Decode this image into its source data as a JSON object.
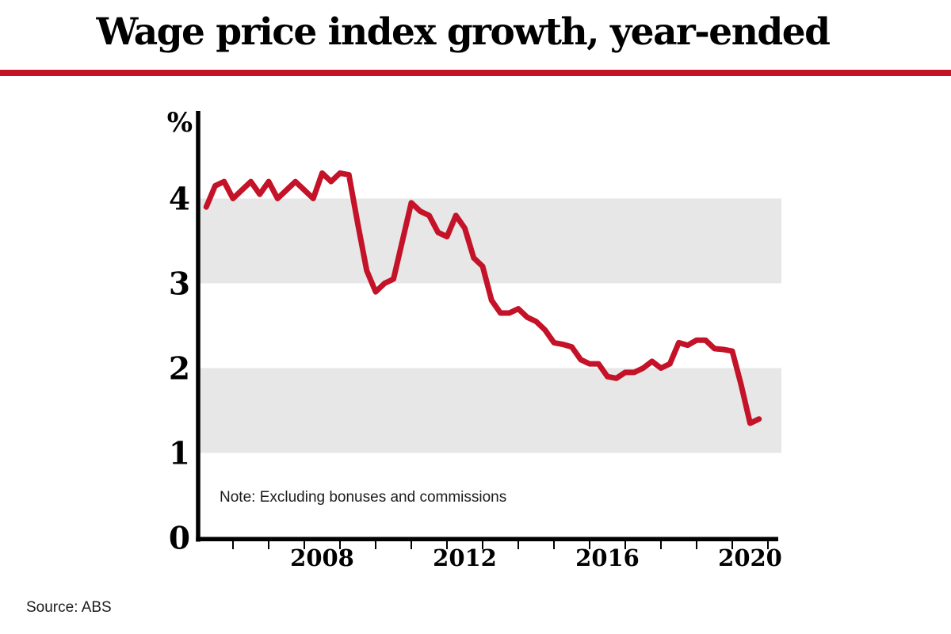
{
  "header": {
    "title": "Wage price index growth, year-ended"
  },
  "colors": {
    "accent_red": "#c41228",
    "band_gray": "#e7e7e7",
    "axis_black": "#000000"
  },
  "source": {
    "text": "Source: ABS"
  },
  "chart_data": {
    "type": "line",
    "title": "Wage price index growth, year-ended",
    "unit_label": "%",
    "series_name": "Wage price index growth, year-ended",
    "note": "Note: Excluding bonuses and commissions",
    "frequency": "quarterly",
    "start_period": "2005Q1",
    "end_period": "2020Q3",
    "xlabel": "",
    "ylabel": "%",
    "ylim": [
      0,
      5
    ],
    "x_range_years": [
      2005,
      2021.4
    ],
    "y_ticks": [
      0,
      1,
      2,
      3,
      4
    ],
    "x_tick_years": [
      2008,
      2012,
      2016,
      2020
    ],
    "x_minor_tick_years": [
      2006,
      2007,
      2008,
      2009,
      2010,
      2011,
      2012,
      2013,
      2014,
      2015,
      2016,
      2017,
      2018,
      2019,
      2020,
      2021
    ],
    "shaded_bands": [
      [
        1,
        2
      ],
      [
        3,
        4
      ]
    ],
    "grid": false,
    "legend": "none",
    "line_color": "#c41228",
    "band_color": "#e7e7e7",
    "periods": [
      "2005Q1",
      "2005Q2",
      "2005Q3",
      "2005Q4",
      "2006Q1",
      "2006Q2",
      "2006Q3",
      "2006Q4",
      "2007Q1",
      "2007Q2",
      "2007Q3",
      "2007Q4",
      "2008Q1",
      "2008Q2",
      "2008Q3",
      "2008Q4",
      "2009Q1",
      "2009Q2",
      "2009Q3",
      "2009Q4",
      "2010Q1",
      "2010Q2",
      "2010Q3",
      "2010Q4",
      "2011Q1",
      "2011Q2",
      "2011Q3",
      "2011Q4",
      "2012Q1",
      "2012Q2",
      "2012Q3",
      "2012Q4",
      "2013Q1",
      "2013Q2",
      "2013Q3",
      "2013Q4",
      "2014Q1",
      "2014Q2",
      "2014Q3",
      "2014Q4",
      "2015Q1",
      "2015Q2",
      "2015Q3",
      "2015Q4",
      "2016Q1",
      "2016Q2",
      "2016Q3",
      "2016Q4",
      "2017Q1",
      "2017Q2",
      "2017Q3",
      "2017Q4",
      "2018Q1",
      "2018Q2",
      "2018Q3",
      "2018Q4",
      "2019Q1",
      "2019Q2",
      "2019Q3",
      "2019Q4",
      "2020Q1",
      "2020Q2",
      "2020Q3"
    ],
    "values": [
      3.9,
      4.15,
      4.2,
      4.0,
      4.1,
      4.2,
      4.05,
      4.2,
      4.0,
      4.1,
      4.2,
      4.1,
      4.0,
      4.3,
      4.2,
      4.3,
      4.28,
      3.7,
      3.15,
      2.9,
      3.0,
      3.05,
      3.5,
      3.95,
      3.85,
      3.8,
      3.6,
      3.55,
      3.8,
      3.65,
      3.3,
      3.2,
      2.8,
      2.65,
      2.65,
      2.7,
      2.6,
      2.55,
      2.45,
      2.3,
      2.28,
      2.25,
      2.1,
      2.05,
      2.05,
      1.9,
      1.88,
      1.95,
      1.95,
      2.0,
      2.08,
      2.0,
      2.05,
      2.3,
      2.27,
      2.33,
      2.33,
      2.23,
      2.22,
      2.2,
      1.8,
      1.35,
      1.4
    ]
  }
}
